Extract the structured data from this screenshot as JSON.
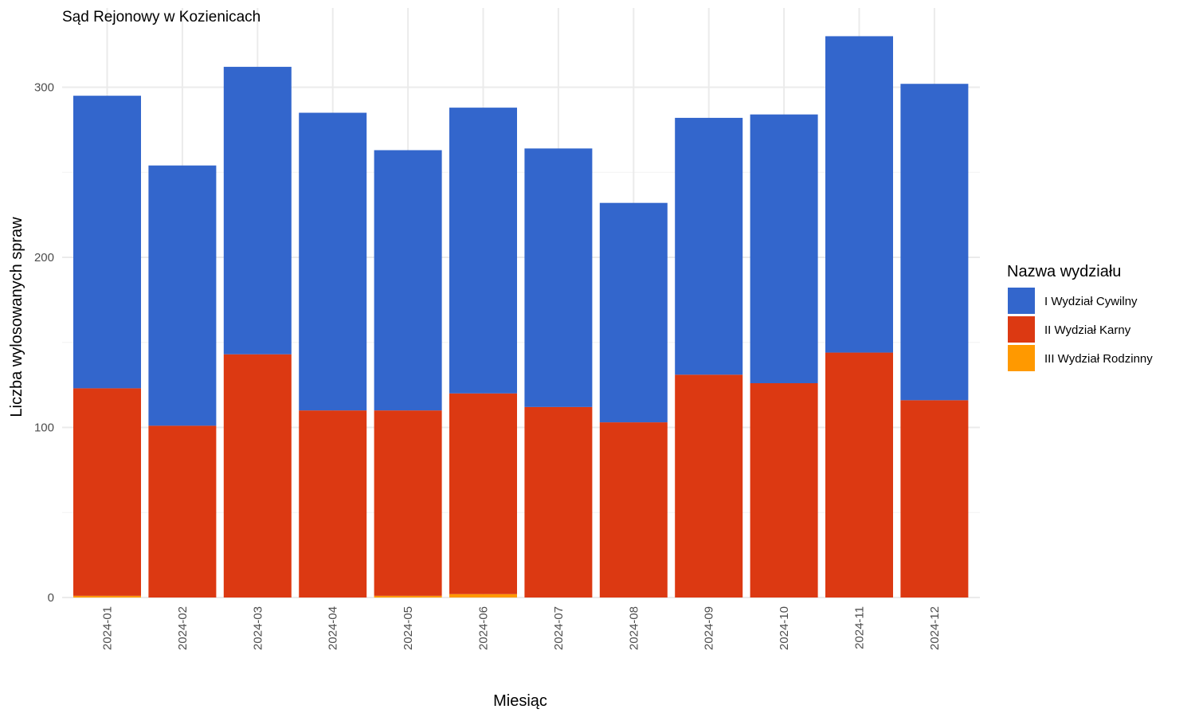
{
  "chart_data": {
    "type": "bar",
    "stacked": true,
    "title": "Sąd Rejonowy w Kozienicach",
    "xlabel": "Miesiąc",
    "ylabel": "Liczba wylosowanych spraw",
    "ylim": [
      0,
      335
    ],
    "yticks": [
      0,
      100,
      200,
      300
    ],
    "grid": true,
    "legend_position": "right",
    "legend_title": "Nazwa wydziału",
    "categories": [
      "2024-01",
      "2024-02",
      "2024-03",
      "2024-04",
      "2024-05",
      "2024-06",
      "2024-07",
      "2024-08",
      "2024-09",
      "2024-10",
      "2024-11",
      "2024-12"
    ],
    "series": [
      {
        "name": "I Wydział Cywilny",
        "color": "#3366cc",
        "values": [
          172,
          153,
          169,
          175,
          153,
          168,
          152,
          129,
          151,
          158,
          186,
          186
        ]
      },
      {
        "name": "II Wydział Karny",
        "color": "#dc3912",
        "values": [
          122,
          101,
          143,
          110,
          109,
          118,
          112,
          103,
          131,
          126,
          144,
          116
        ]
      },
      {
        "name": "III Wydział Rodzinny",
        "color": "#ff9900",
        "values": [
          1,
          0,
          0,
          0,
          1,
          2,
          0,
          0,
          0,
          0,
          0,
          0
        ]
      }
    ]
  }
}
